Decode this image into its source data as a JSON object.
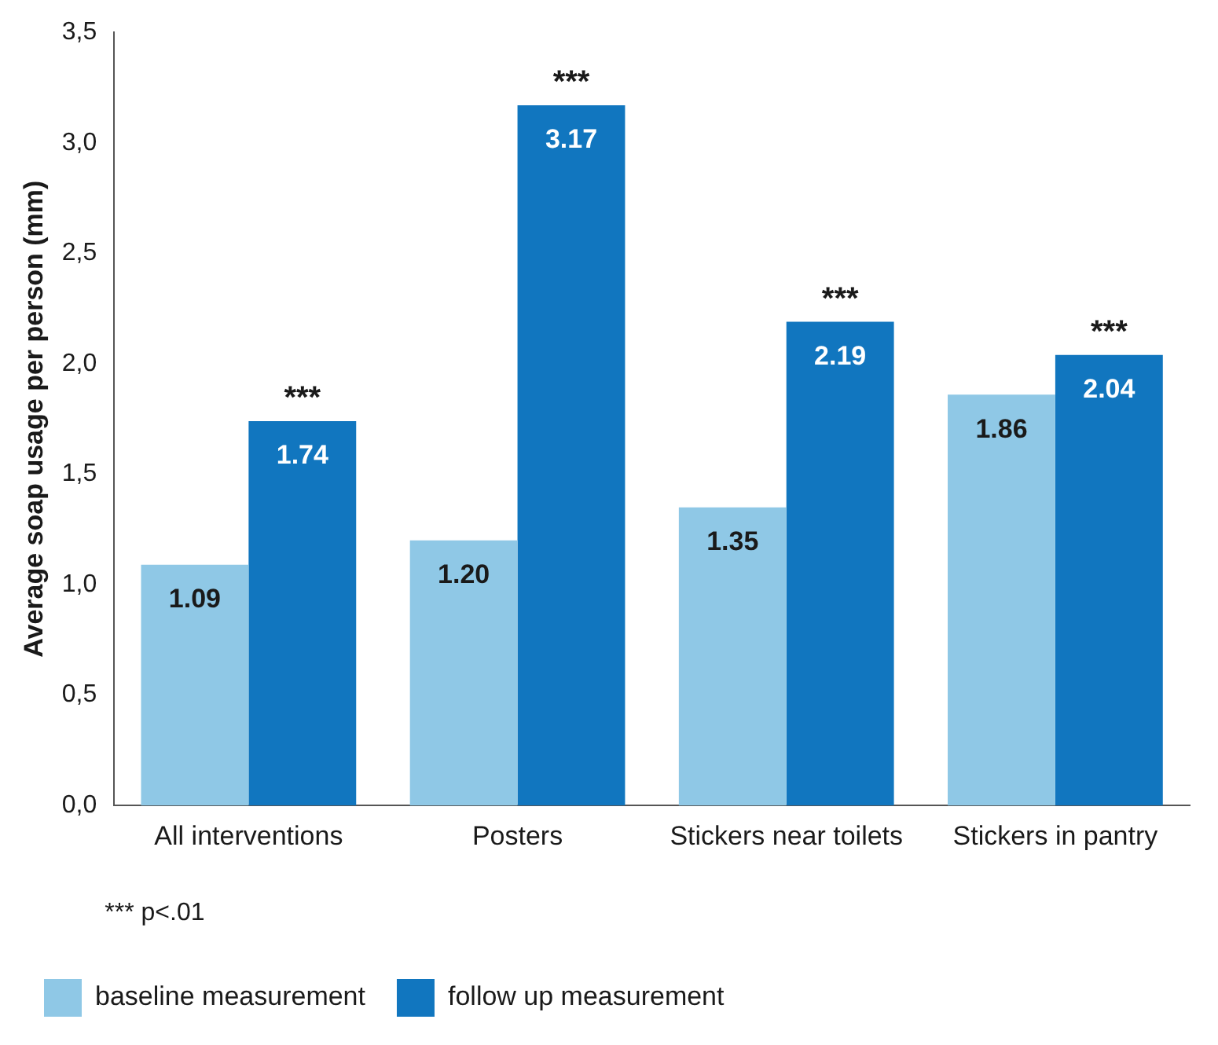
{
  "chart_data": {
    "type": "bar",
    "ylabel": "Average soap usage per person (mm)",
    "categories": [
      "All interventions",
      "Posters",
      "Stickers near toilets",
      "Stickers in pantry"
    ],
    "series": [
      {
        "name": "baseline measurement",
        "color": "#8fc8e6",
        "values": [
          1.09,
          1.2,
          1.35,
          1.86
        ],
        "value_labels": [
          "1.09",
          "1.20",
          "1.35",
          "1.86"
        ]
      },
      {
        "name": "follow up measurement",
        "color": "#1176bf",
        "values": [
          1.74,
          3.17,
          2.19,
          2.04
        ],
        "value_labels": [
          "1.74",
          "3.17",
          "2.19",
          "2.04"
        ]
      }
    ],
    "ylim": [
      0,
      3.5
    ],
    "yticks": [
      {
        "value": 0,
        "label": "0,0"
      },
      {
        "value": 0.5,
        "label": "0,5"
      },
      {
        "value": 1,
        "label": "1,0"
      },
      {
        "value": 1.5,
        "label": "1,5"
      },
      {
        "value": 2,
        "label": "2,0"
      },
      {
        "value": 2.5,
        "label": "2,5"
      },
      {
        "value": 3,
        "label": "3,0"
      },
      {
        "value": 3.5,
        "label": "3,5"
      }
    ],
    "grid": false,
    "legend": "bottom",
    "annotations": [
      {
        "text": "***",
        "x": "All interventions",
        "y": 1.74
      },
      {
        "text": "***",
        "x": "Posters",
        "y": 3.17
      },
      {
        "text": "***",
        "x": "Stickers near toilets",
        "y": 2.19
      },
      {
        "text": "***",
        "x": "Stickers in pantry",
        "y": 2.04
      },
      "*** p<.01"
    ]
  }
}
